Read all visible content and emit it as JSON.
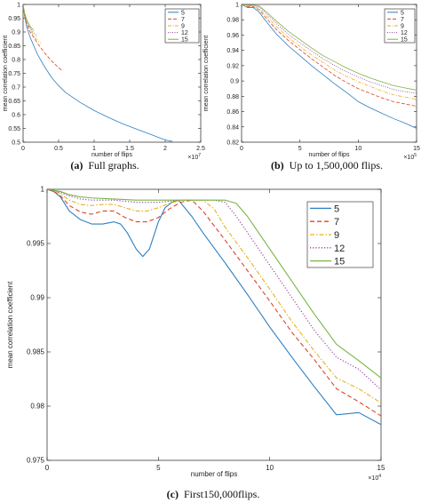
{
  "chart_data": [
    {
      "id": "a",
      "type": "line",
      "caption_label": "(a)",
      "caption_text": "Full graphs.",
      "xlabel": "number of flips",
      "ylabel": "mean correlation coefficient",
      "x_exponent": "×10",
      "x_exponent_power": "7",
      "xlim": [
        0,
        2.5
      ],
      "ylim": [
        0.5,
        1
      ],
      "xticks": [
        0,
        0.5,
        1,
        1.5,
        2,
        2.5
      ],
      "xtick_labels": [
        "0",
        "0.5",
        "1",
        "1.5",
        "2",
        "2.5"
      ],
      "yticks": [
        0.5,
        0.55,
        0.6,
        0.65,
        0.7,
        0.75,
        0.8,
        0.85,
        0.9,
        0.95,
        1
      ],
      "ytick_labels": [
        "0.5",
        "0.55",
        "0.6",
        "0.65",
        "0.7",
        "0.75",
        "0.8",
        "0.85",
        "0.9",
        "0.95",
        "1"
      ],
      "legend_position": "top-right",
      "series": [
        {
          "name": "5",
          "color": "#2e7fc2",
          "dash": "",
          "x": [
            0,
            0.02,
            0.05,
            0.1,
            0.15,
            0.2,
            0.3,
            0.4,
            0.5,
            0.6,
            0.8,
            1.0,
            1.2,
            1.4,
            1.6,
            1.8,
            1.95,
            2.05,
            2.1
          ],
          "y": [
            1,
            0.96,
            0.92,
            0.88,
            0.85,
            0.82,
            0.775,
            0.735,
            0.705,
            0.68,
            0.645,
            0.615,
            0.59,
            0.567,
            0.547,
            0.528,
            0.513,
            0.505,
            0.503
          ]
        },
        {
          "name": "7",
          "color": "#d9472b",
          "dash": "4,2",
          "x": [
            0,
            0.02,
            0.05,
            0.1,
            0.2,
            0.3,
            0.4,
            0.5,
            0.55
          ],
          "y": [
            1,
            0.96,
            0.93,
            0.9,
            0.86,
            0.825,
            0.795,
            0.77,
            0.76
          ]
        },
        {
          "name": "9",
          "color": "#e8b11d",
          "dash": "4,1.5,1,1.5",
          "x": [
            0,
            0.02,
            0.05,
            0.1,
            0.15,
            0.2,
            0.25
          ],
          "y": [
            1,
            0.965,
            0.935,
            0.91,
            0.885,
            0.87,
            0.86
          ]
        },
        {
          "name": "12",
          "color": "#8b3f97",
          "dash": "1,1.5",
          "x": [
            0,
            0.02,
            0.05,
            0.1,
            0.15,
            0.2
          ],
          "y": [
            1,
            0.97,
            0.94,
            0.915,
            0.895,
            0.885
          ]
        },
        {
          "name": "15",
          "color": "#7bb445",
          "dash": "",
          "x": [
            0,
            0.02,
            0.05,
            0.1,
            0.15
          ],
          "y": [
            1,
            0.97,
            0.945,
            0.92,
            0.905
          ]
        }
      ]
    },
    {
      "id": "b",
      "type": "line",
      "caption_label": "(b)",
      "caption_text": "Up to 1,500,000 flips.",
      "xlabel": "number of flips",
      "ylabel": "mean correlation coefficient",
      "x_exponent": "×10",
      "x_exponent_power": "5",
      "xlim": [
        0,
        15
      ],
      "ylim": [
        0.82,
        1
      ],
      "xticks": [
        0,
        5,
        10,
        15
      ],
      "xtick_labels": [
        "0",
        "5",
        "10",
        "15"
      ],
      "yticks": [
        0.82,
        0.84,
        0.86,
        0.88,
        0.9,
        0.92,
        0.94,
        0.96,
        0.98,
        1
      ],
      "ytick_labels": [
        "0.82",
        "0.84",
        "0.86",
        "0.88",
        "0.9",
        "0.92",
        "0.94",
        "0.96",
        "0.98",
        "1"
      ],
      "legend_position": "top-right",
      "series": [
        {
          "name": "5",
          "color": "#2e7fc2",
          "dash": "",
          "x": [
            0,
            0.5,
            1,
            1.5,
            2,
            3,
            4,
            5,
            6,
            7,
            8,
            9,
            10,
            11,
            12,
            13,
            14,
            15
          ],
          "y": [
            1,
            0.996,
            0.996,
            0.99,
            0.98,
            0.961,
            0.946,
            0.933,
            0.92,
            0.908,
            0.896,
            0.885,
            0.873,
            0.865,
            0.858,
            0.851,
            0.845,
            0.838
          ]
        },
        {
          "name": "7",
          "color": "#d9472b",
          "dash": "4,2",
          "x": [
            0,
            0.5,
            1,
            1.5,
            2,
            3,
            4,
            5,
            6,
            7,
            8,
            9,
            10,
            11,
            12,
            13,
            14,
            15
          ],
          "y": [
            1,
            0.997,
            0.997,
            0.993,
            0.984,
            0.967,
            0.953,
            0.941,
            0.929,
            0.918,
            0.907,
            0.898,
            0.89,
            0.884,
            0.878,
            0.873,
            0.87,
            0.867
          ]
        },
        {
          "name": "9",
          "color": "#e8b11d",
          "dash": "4,1.5,1,1.5",
          "x": [
            0,
            0.5,
            1,
            1.5,
            2,
            3,
            4,
            5,
            6,
            7,
            8,
            9,
            10,
            11,
            12,
            13,
            14,
            15
          ],
          "y": [
            1,
            0.998,
            0.998,
            0.995,
            0.987,
            0.971,
            0.957,
            0.945,
            0.934,
            0.924,
            0.914,
            0.906,
            0.899,
            0.893,
            0.887,
            0.882,
            0.879,
            0.876
          ]
        },
        {
          "name": "12",
          "color": "#8b3f97",
          "dash": "1,1.5",
          "x": [
            0,
            0.5,
            1,
            1.5,
            2,
            3,
            4,
            5,
            6,
            7,
            8,
            9,
            10,
            11,
            12,
            13,
            14,
            15
          ],
          "y": [
            1,
            0.999,
            0.999,
            0.997,
            0.99,
            0.975,
            0.961,
            0.95,
            0.939,
            0.929,
            0.92,
            0.912,
            0.905,
            0.899,
            0.894,
            0.889,
            0.886,
            0.884
          ]
        },
        {
          "name": "15",
          "color": "#7bb445",
          "dash": "",
          "x": [
            0,
            0.5,
            1,
            1.5,
            2,
            3,
            4,
            5,
            6,
            7,
            8,
            9,
            10,
            11,
            12,
            13,
            14,
            15
          ],
          "y": [
            1,
            0.999,
            0.999,
            0.998,
            0.992,
            0.978,
            0.965,
            0.954,
            0.943,
            0.933,
            0.925,
            0.917,
            0.91,
            0.904,
            0.899,
            0.894,
            0.891,
            0.888
          ]
        }
      ]
    },
    {
      "id": "c",
      "type": "line",
      "caption_label": "(c)",
      "caption_text": "First150,000flips.",
      "xlabel": "number of flips",
      "ylabel": "mean correlation coefficient",
      "x_exponent": "×10",
      "x_exponent_power": "4",
      "xlim": [
        0,
        15
      ],
      "ylim": [
        0.975,
        1
      ],
      "xticks": [
        0,
        5,
        10,
        15
      ],
      "xtick_labels": [
        "0",
        "5",
        "10",
        "15"
      ],
      "yticks": [
        0.975,
        0.98,
        0.985,
        0.99,
        0.995,
        1
      ],
      "ytick_labels": [
        "0.975",
        "0.98",
        "0.985",
        "0.99",
        "0.995",
        "1"
      ],
      "legend_position": "top-right",
      "series": [
        {
          "name": "5",
          "color": "#2e7fc2",
          "dash": "",
          "x": [
            0,
            0.3,
            0.6,
            1,
            1.5,
            2,
            2.5,
            3,
            3.3,
            3.6,
            4,
            4.3,
            4.6,
            5,
            5.3,
            5.6,
            5.9,
            6.5,
            7,
            8,
            9,
            10,
            11,
            12,
            13,
            14,
            15
          ],
          "y": [
            1,
            0.9998,
            0.9993,
            0.998,
            0.9972,
            0.9968,
            0.9968,
            0.997,
            0.9968,
            0.996,
            0.9945,
            0.9938,
            0.9945,
            0.997,
            0.9983,
            0.9988,
            0.999,
            0.9975,
            0.996,
            0.9932,
            0.9903,
            0.9873,
            0.9845,
            0.9818,
            0.9792,
            0.9794,
            0.9783
          ]
        },
        {
          "name": "7",
          "color": "#d9472b",
          "dash": "5,3",
          "x": [
            0,
            0.3,
            0.6,
            1,
            1.5,
            2,
            2.5,
            3,
            3.5,
            4,
            4.5,
            5,
            5.5,
            6,
            6.5,
            7,
            8,
            9,
            10,
            11,
            12,
            13,
            14,
            15
          ],
          "y": [
            1,
            0.9998,
            0.9994,
            0.9985,
            0.9979,
            0.9977,
            0.998,
            0.998,
            0.9974,
            0.997,
            0.997,
            0.9974,
            0.9982,
            0.9988,
            0.999,
            0.998,
            0.9953,
            0.9925,
            0.9897,
            0.9868,
            0.9843,
            0.9816,
            0.9804,
            0.9791
          ]
        },
        {
          "name": "9",
          "color": "#e8b11d",
          "dash": "5,2,1.5,2",
          "x": [
            0,
            0.3,
            0.6,
            1,
            1.5,
            2,
            2.5,
            3,
            3.5,
            4,
            4.5,
            5,
            5.5,
            6,
            6.5,
            7,
            7.5,
            8,
            9,
            10,
            11,
            12,
            13,
            14,
            15
          ],
          "y": [
            1,
            0.9999,
            0.9996,
            0.999,
            0.9986,
            0.9985,
            0.9986,
            0.9986,
            0.9983,
            0.998,
            0.998,
            0.9983,
            0.9987,
            0.999,
            0.999,
            0.999,
            0.9982,
            0.9965,
            0.9937,
            0.9908,
            0.9878,
            0.9851,
            0.9826,
            0.9816,
            0.9803
          ]
        },
        {
          "name": "12",
          "color": "#8b3f97",
          "dash": "1.2,2",
          "x": [
            0,
            0.3,
            0.6,
            1,
            1.5,
            2,
            3,
            4,
            5,
            6,
            7,
            7.5,
            8,
            8.5,
            9,
            10,
            11,
            12,
            13,
            14,
            15
          ],
          "y": [
            1,
            0.9999,
            0.9997,
            0.9994,
            0.9991,
            0.999,
            0.999,
            0.9988,
            0.9988,
            0.999,
            0.999,
            0.999,
            0.9988,
            0.9975,
            0.996,
            0.993,
            0.99,
            0.987,
            0.9845,
            0.9834,
            0.9815
          ]
        },
        {
          "name": "15",
          "color": "#7bb445",
          "dash": "",
          "x": [
            0,
            0.3,
            0.6,
            1,
            1.5,
            2,
            3,
            4,
            5,
            6,
            7,
            7.5,
            8,
            8.5,
            9,
            9.5,
            10,
            11,
            12,
            13,
            14,
            15
          ],
          "y": [
            1,
            0.9999,
            0.9998,
            0.9995,
            0.9993,
            0.9992,
            0.9991,
            0.999,
            0.999,
            0.999,
            0.999,
            0.999,
            0.999,
            0.9987,
            0.9975,
            0.996,
            0.9945,
            0.9915,
            0.9885,
            0.9857,
            0.9842,
            0.9826
          ]
        }
      ]
    }
  ]
}
